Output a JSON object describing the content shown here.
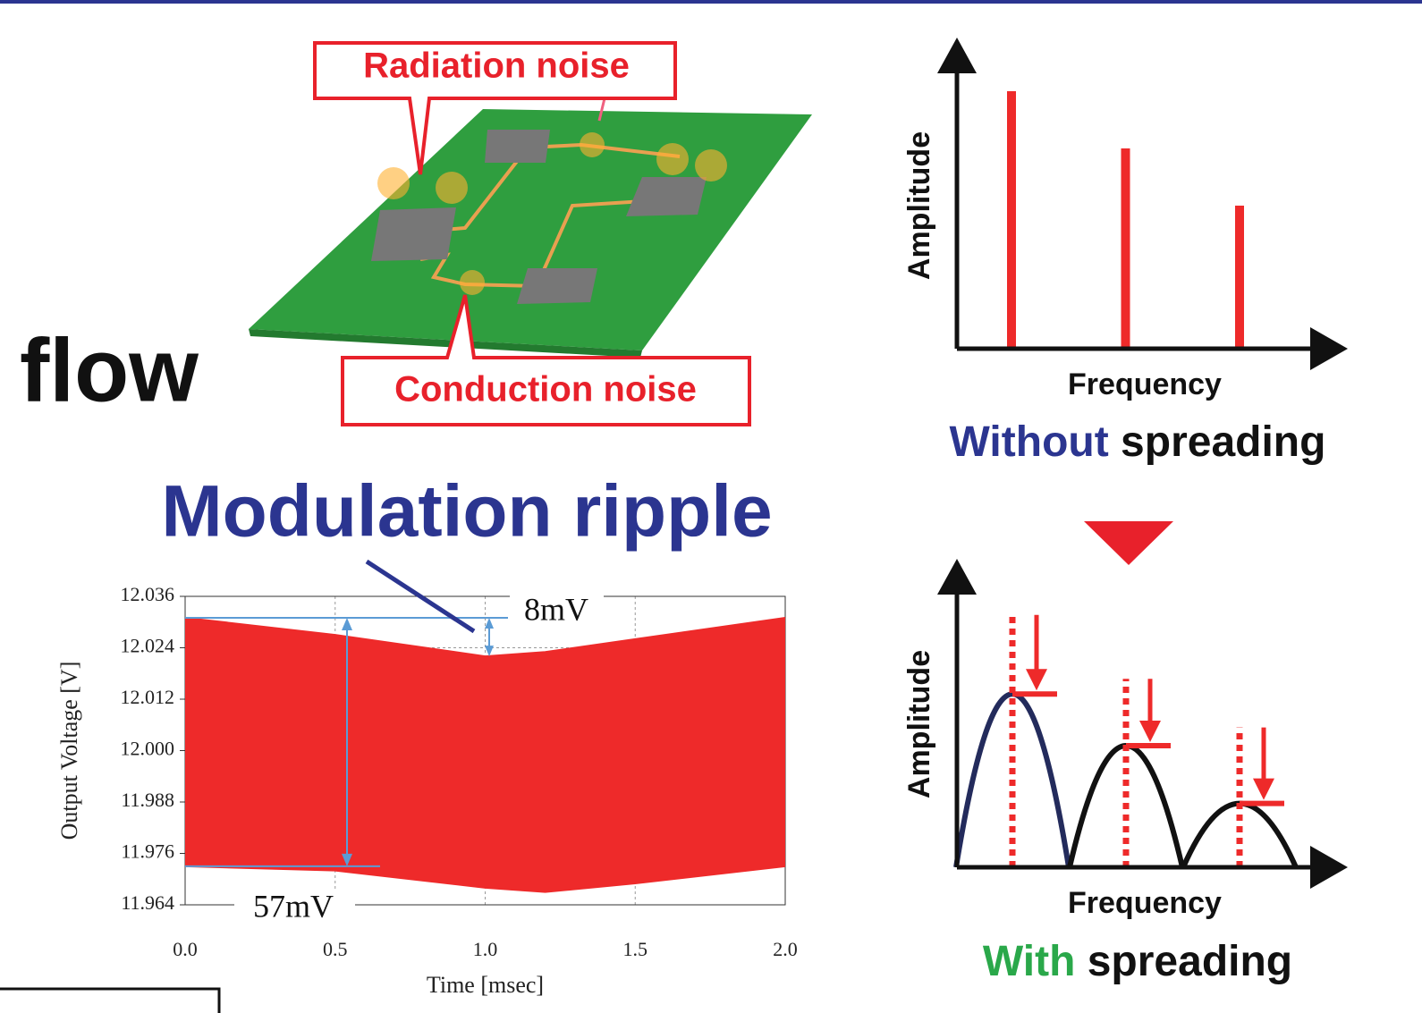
{
  "labels": {
    "radiation_noise": "Radiation noise",
    "conduction_noise": "Conduction noise",
    "flow": "flow"
  },
  "chart_data": [
    {
      "type": "band",
      "title": "Modulation ripple",
      "x_label": "Time [msec]",
      "y_label": "Output Voltage [V]",
      "x": [
        0,
        0.5,
        1.0,
        1.2,
        1.5,
        2.0
      ],
      "upper": [
        12.031,
        12.027,
        12.022,
        12.023,
        12.026,
        12.031
      ],
      "lower": [
        11.973,
        11.972,
        11.968,
        11.967,
        11.969,
        11.973
      ],
      "color": "#ee2a2a",
      "xlim": [
        0,
        2
      ],
      "xticks": [
        {
          "value": 0,
          "label": "0.0"
        },
        0.5,
        {
          "value": 1,
          "label": "1.0"
        },
        1.5,
        {
          "value": 2,
          "label": "2.0"
        }
      ],
      "ylim": [
        11.964,
        12.036
      ],
      "yticks": [
        11.964,
        11.976,
        11.988,
        {
          "value": 12,
          "label": "12.000"
        },
        12.012,
        12.024,
        12.036
      ],
      "grid": true,
      "annotations": [
        "8mV",
        "57mV"
      ]
    },
    {
      "type": "spectrum",
      "x_label": "Frequency",
      "y_label": "Amplitude",
      "categories": [
        null,
        null,
        null
      ],
      "values": [
        90,
        70,
        50
      ],
      "color": "#ee2a2a",
      "ylim": [
        0,
        100
      ],
      "caption": [
        {
          "text": "Without",
          "color": "#2b3590"
        },
        {
          "text": "spreading",
          "color": "#111111"
        }
      ]
    },
    {
      "type": "spread",
      "x_label": "Frequency",
      "y_label": "Amplitude",
      "categories": [
        null,
        null,
        null
      ],
      "original": [
        83,
        62,
        46
      ],
      "values": [
        57,
        40,
        21
      ],
      "hump_colors": [
        "#232b5c",
        "#111111",
        "#111111"
      ],
      "color": "#ee2a2a",
      "ylim": [
        0,
        100
      ],
      "caption": [
        {
          "text": "With",
          "color": "#2aa84a"
        },
        {
          "text": "spreading",
          "color": "#111111"
        }
      ]
    }
  ]
}
